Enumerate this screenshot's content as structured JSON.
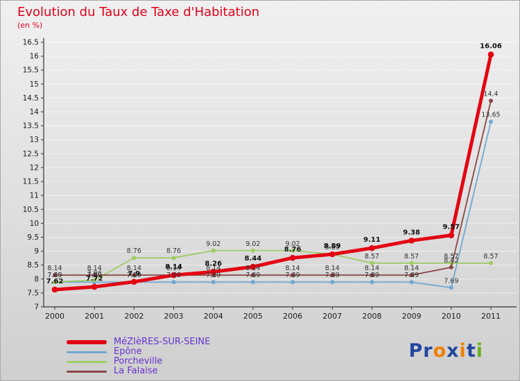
{
  "colors": {
    "title": "#e2001a",
    "background_top": "#f0f0f0",
    "background_bottom": "#cfcfcf",
    "axis": "#333333",
    "grid": "#ffffff",
    "tick_label": "#1a1a1a",
    "point_label": "#333333",
    "point_label_main": "#111111",
    "legend_text": "#6633cc"
  },
  "x_axis": {
    "labels": [
      "2000",
      "2001",
      "2002",
      "2003",
      "2004",
      "2005",
      "2006",
      "2007",
      "2008",
      "2009",
      "2010",
      "2011"
    ]
  },
  "y_axis": {
    "min": 7,
    "max": 16.5,
    "step": 0.5
  },
  "logo": {
    "letters": [
      {
        "ch": "P",
        "color": "#23479e"
      },
      {
        "ch": "r",
        "color": "#23479e"
      },
      {
        "ch": "o",
        "color": "#f07f00"
      },
      {
        "ch": "x",
        "color": "#23479e"
      },
      {
        "ch": "i",
        "color": "#f07f00"
      },
      {
        "ch": "t",
        "color": "#23479e"
      },
      {
        "ch": "i",
        "color": "#6ab023"
      }
    ]
  },
  "chart_data": {
    "type": "line",
    "title": "Evolution du Taux de Taxe d'Habitation",
    "subtitle": "(en %)",
    "x": [
      2000,
      2001,
      2002,
      2003,
      2004,
      2005,
      2006,
      2007,
      2008,
      2009,
      2010,
      2011
    ],
    "xlabel": "",
    "ylabel": "",
    "ylim": [
      7,
      16.5
    ],
    "ytick_step": 0.5,
    "grid": true,
    "legend_position": "bottom-left",
    "series": [
      {
        "name": "MéZIèRES-SUR-SEINE",
        "color": "#e30613",
        "thick": true,
        "values": [
          7.62,
          7.72,
          7.9,
          8.14,
          8.26,
          8.44,
          8.76,
          8.89,
          9.11,
          9.38,
          9.57,
          16.06
        ]
      },
      {
        "name": "Epône",
        "color": "#6fa8d2",
        "thick": false,
        "values": [
          7.89,
          7.89,
          7.89,
          7.89,
          7.89,
          7.89,
          7.89,
          7.89,
          7.89,
          7.89,
          7.69,
          13.65
        ]
      },
      {
        "name": "Porcheville",
        "color": "#9ccc63",
        "thick": false,
        "values": [
          7.89,
          7.96,
          8.76,
          8.76,
          9.02,
          9.02,
          9.02,
          8.89,
          8.57,
          8.57,
          8.57,
          8.57
        ]
      },
      {
        "name": "La Falaise",
        "color": "#8b4545",
        "thick": false,
        "values": [
          8.14,
          8.14,
          8.14,
          8.14,
          8.14,
          8.14,
          8.14,
          8.14,
          8.14,
          8.14,
          8.42,
          14.4
        ]
      }
    ]
  }
}
